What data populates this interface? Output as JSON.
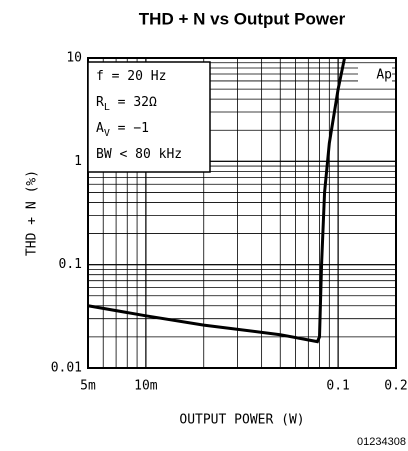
{
  "chart_data": {
    "type": "line",
    "title": "THD + N vs Output Power",
    "xlabel": "OUTPUT POWER (W)",
    "ylabel": "THD + N (%)",
    "log_x": true,
    "log_y": true,
    "grid": true,
    "xlim": [
      0.005,
      0.2
    ],
    "ylim": [
      0.01,
      10
    ],
    "xticks": [
      {
        "value": 0.005,
        "label": "5m"
      },
      {
        "value": 0.01,
        "label": "10m"
      },
      0.1,
      0.2
    ],
    "yticks": [
      0.01,
      0.1,
      1,
      10
    ],
    "x": [
      0.005,
      0.01,
      0.02,
      0.05,
      0.078,
      0.08,
      0.082,
      0.085,
      0.09,
      0.1,
      0.108
    ],
    "series": [
      {
        "name": "Ap",
        "color": "#000000",
        "values": [
          0.04,
          0.032,
          0.026,
          0.021,
          0.018,
          0.02,
          0.1,
          0.5,
          1.5,
          5,
          10
        ]
      }
    ],
    "annotations": [
      {
        "main": "f = 20 Hz"
      },
      {
        "main": "R",
        "sub": "L",
        "rest": " = 32Ω"
      },
      {
        "main": "A",
        "sub": "V",
        "rest": " = −1"
      },
      {
        "main": "BW < 80 kHz"
      }
    ],
    "footnote": "01234308"
  }
}
